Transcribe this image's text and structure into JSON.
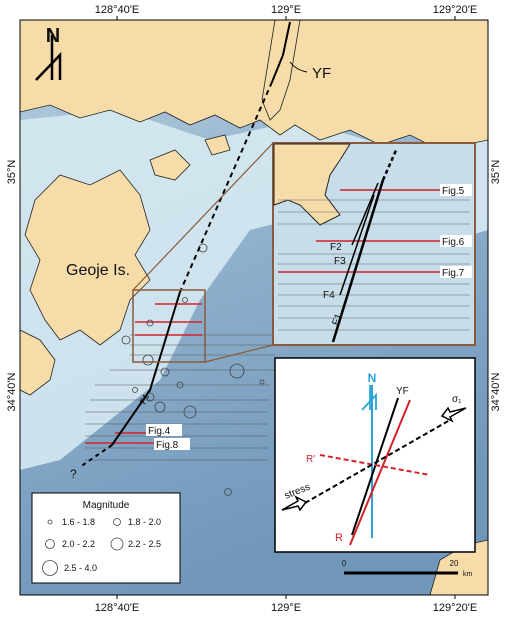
{
  "map": {
    "lon_labels": [
      "128°40'E",
      "129°E",
      "129°20'E"
    ],
    "lat_labels": [
      "35°N",
      "34°40'N"
    ],
    "north": "N",
    "fault_name": "YF",
    "island": "Geoje Is.",
    "fault_label": "F1",
    "uncertain": "?",
    "profiles": [
      "Fig.4",
      "Fig.8"
    ]
  },
  "inset": {
    "profiles": [
      "Fig.5",
      "Fig.6",
      "Fig.7"
    ],
    "faults": [
      "F2",
      "F3",
      "F4",
      "F1"
    ]
  },
  "legend": {
    "title": "Magnitude",
    "entries": [
      "1.6 - 1.8",
      "1.8 - 2.0",
      "2.0 - 2.2",
      "2.2 - 2.5",
      "2.5 - 4.0"
    ]
  },
  "stress_diagram": {
    "north": "N",
    "fault": "YF",
    "sigma": "σ₁",
    "r_prime": "R'",
    "r": "R",
    "stress": "stress",
    "scale": [
      "0",
      "20",
      "km"
    ]
  }
}
